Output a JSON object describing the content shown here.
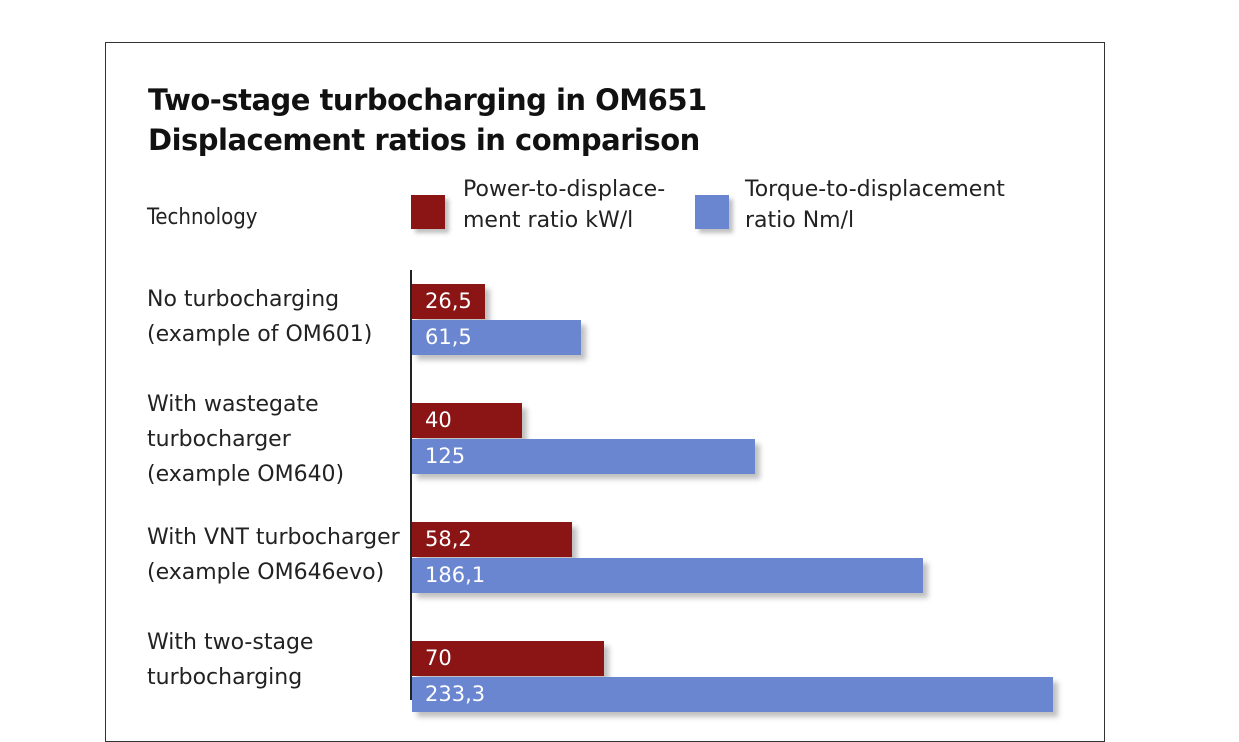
{
  "chart_data": {
    "type": "bar",
    "orientation": "horizontal",
    "title": "Two-stage turbocharging in OM651\nDisplacement ratios in comparison",
    "title_lines": [
      "Two-stage turbocharging in OM651",
      "Displacement ratios in comparison"
    ],
    "category_header": "Technology",
    "categories": [
      "No turbocharging\n(example of OM601)",
      "With wastegate\nturbocharger\n(example OM640)",
      "With VNT turbocharger\n(example OM646evo)",
      "With two-stage\nturbocharging"
    ],
    "series": [
      {
        "name": "Power-to-displace-\nment ratio kW/l",
        "color": "#8b1414",
        "values": [
          26.5,
          40,
          58.2,
          70
        ],
        "value_labels": [
          "26,5",
          "40",
          "58,2",
          "70"
        ]
      },
      {
        "name": "Torque-to-displacement\nratio Nm/l",
        "color": "#6a86d0",
        "values": [
          61.5,
          125,
          186.1,
          233.3
        ],
        "value_labels": [
          "61,5",
          "125",
          "186,1",
          "233,3"
        ]
      }
    ],
    "legend_position": "top",
    "xlim": [
      0,
      235
    ],
    "grid": false
  }
}
